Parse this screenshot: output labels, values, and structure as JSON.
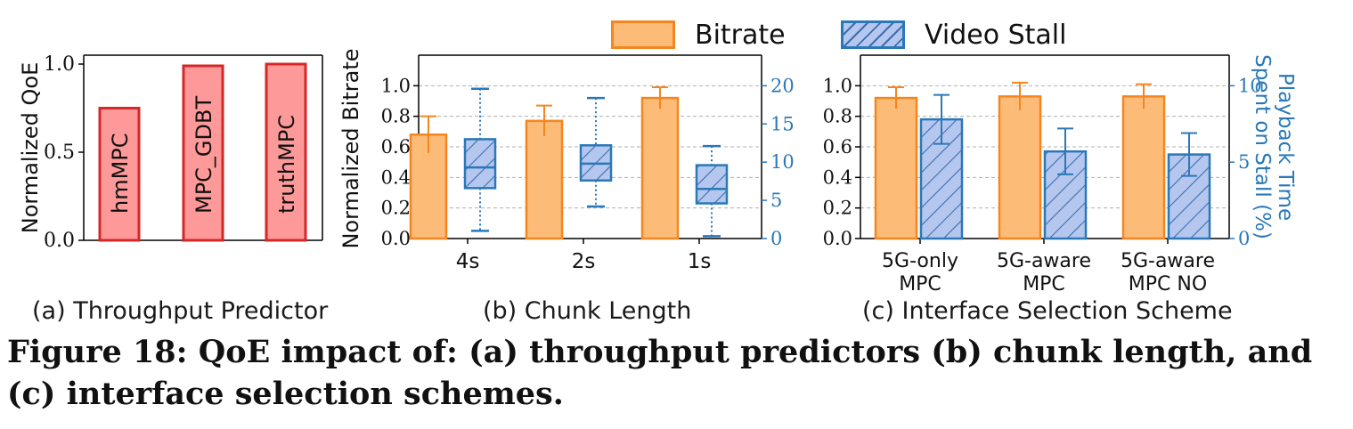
{
  "figure": {
    "caption": "Figure 18: QoE impact of: (a) throughput predictors (b) chunk length, and (c) interface selection schemes.",
    "panel_a_caption": "(a) Throughput Predictor",
    "panel_b_caption": "(b) Chunk Length",
    "panel_c_caption": "(c) Interface Selection Scheme"
  },
  "legend": {
    "bitrate": "Bitrate",
    "stall": "Video Stall"
  },
  "colors": {
    "bitrate_fill": "#fdbb78",
    "bitrate_edge": "#f5861f",
    "stall_fill": "#b5c7ee",
    "stall_edge": "#2a78b8",
    "qoe_fill": "#fe9999",
    "qoe_edge": "#d62728"
  },
  "chart_data": [
    {
      "type": "bar",
      "panel": "a",
      "ylabel": "Normalized QoE",
      "ylim": [
        0,
        1.05
      ],
      "yticks": [
        "0.0",
        "0.5",
        "1.0"
      ],
      "categories": [
        "hmMPC",
        "MPC_GDBT",
        "truthMPC"
      ],
      "values": [
        0.75,
        0.99,
        1.0
      ]
    },
    {
      "type": "bar",
      "panel": "b",
      "ylabel": "Normalized Bitrate",
      "ylim": [
        0,
        1.2
      ],
      "yticks": [
        "0.0",
        "0.2",
        "0.4",
        "0.6",
        "0.8",
        "1.0"
      ],
      "y2lim": [
        0,
        24
      ],
      "y2ticks": [
        "0",
        "5",
        "10",
        "15",
        "20"
      ],
      "grid": true,
      "categories": [
        "4s",
        "2s",
        "1s"
      ],
      "bitrate": {
        "values": [
          0.68,
          0.77,
          0.92
        ],
        "err": [
          0.12,
          0.1,
          0.07
        ]
      },
      "stall_box": [
        {
          "min": 1.0,
          "q1": 6.6,
          "median": 9.3,
          "q3": 13.0,
          "max": 19.6
        },
        {
          "min": 4.2,
          "q1": 7.6,
          "median": 9.8,
          "q3": 12.2,
          "max": 18.4
        },
        {
          "min": 0.3,
          "q1": 4.6,
          "median": 6.5,
          "q3": 9.6,
          "max": 12.1
        }
      ]
    },
    {
      "type": "bar",
      "panel": "c",
      "y2label": "Playback Time Spent on Stall (%)",
      "ylim": [
        0,
        1.2
      ],
      "yticks": [
        "0.0",
        "0.2",
        "0.4",
        "0.6",
        "0.8",
        "1.0"
      ],
      "y2lim": [
        0,
        12
      ],
      "y2ticks": [
        "0",
        "5",
        "10"
      ],
      "grid": true,
      "categories": [
        "5G-only MPC",
        "5G-aware MPC",
        "5G-aware MPC NO"
      ],
      "bitrate": {
        "values": [
          0.92,
          0.93,
          0.93
        ],
        "err": [
          0.07,
          0.09,
          0.08
        ]
      },
      "stall": {
        "values": [
          7.8,
          5.7,
          5.5
        ],
        "err": [
          1.6,
          1.5,
          1.4
        ]
      }
    }
  ]
}
